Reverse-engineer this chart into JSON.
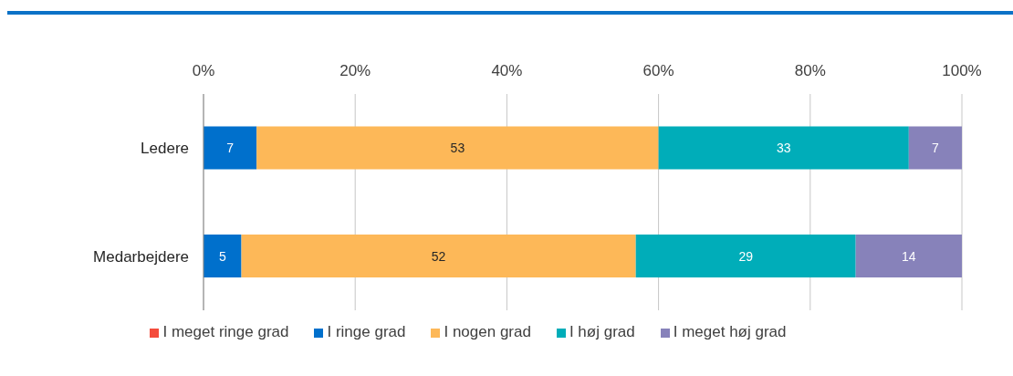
{
  "chart_data": {
    "type": "bar",
    "orientation": "horizontal",
    "stacked": true,
    "categories": [
      "Ledere",
      "Medarbejdere"
    ],
    "series": [
      {
        "name": "I meget ringe grad",
        "color": "#f44c3c",
        "values": [
          0,
          0
        ],
        "value_labels": [
          null,
          null
        ]
      },
      {
        "name": "I ringe grad",
        "color": "#0070cc",
        "values": [
          7,
          5
        ],
        "value_labels": [
          "7",
          "5"
        ]
      },
      {
        "name": "I nogen grad",
        "color": "#fdb858",
        "values": [
          53,
          52
        ],
        "value_labels": [
          "53",
          "52"
        ]
      },
      {
        "name": "I høj grad",
        "color": "#00adb9",
        "values": [
          33,
          29
        ],
        "value_labels": [
          "33",
          "29"
        ]
      },
      {
        "name": "I meget høj grad",
        "color": "#8782ba",
        "values": [
          7,
          14
        ],
        "value_labels": [
          "7",
          "14"
        ]
      }
    ],
    "xlim": [
      0,
      100
    ],
    "xticks": [
      {
        "value": 0,
        "label": "0%"
      },
      {
        "value": 20,
        "label": "20%"
      },
      {
        "value": 40,
        "label": "40%"
      },
      {
        "value": 60,
        "label": "60%"
      },
      {
        "value": 80,
        "label": "80%"
      },
      {
        "value": 100,
        "label": "100%"
      }
    ],
    "grid": "x",
    "legend": "bottom"
  }
}
